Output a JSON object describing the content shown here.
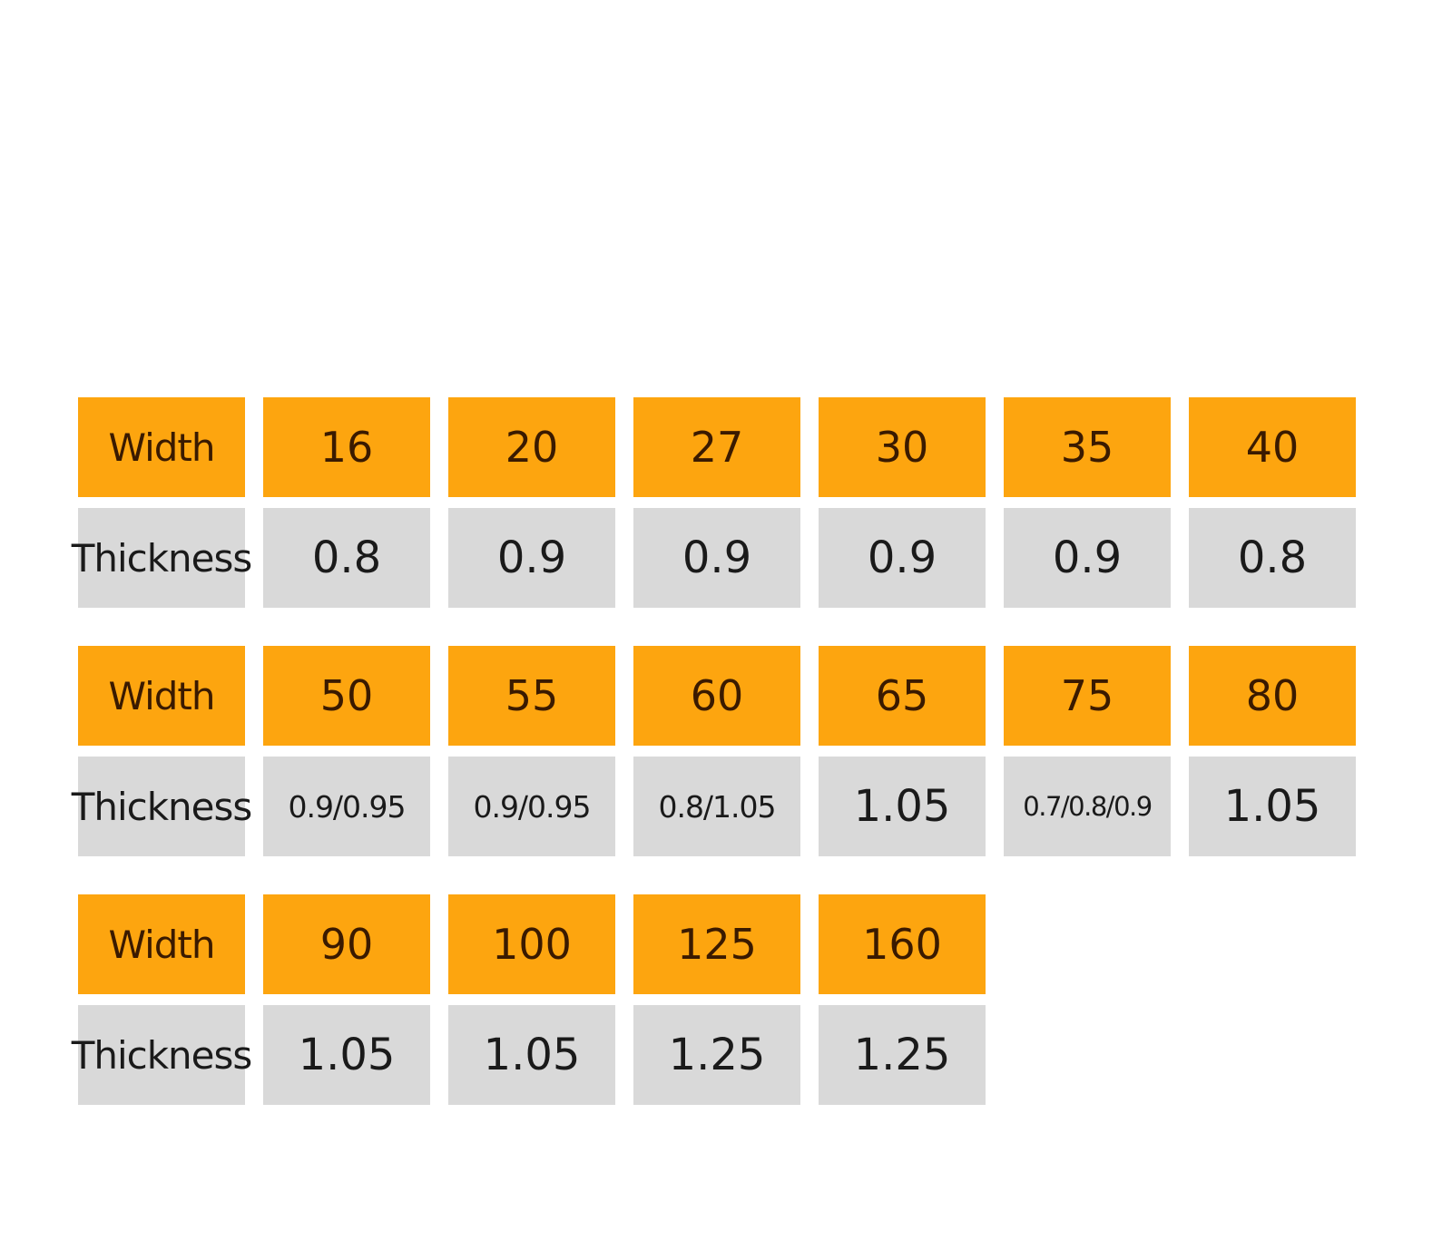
{
  "blocks": [
    {
      "width_label": "Width",
      "widths": [
        "16",
        "20",
        "27",
        "30",
        "35",
        "40"
      ],
      "thickness_label": "Thickness",
      "thicknesses": [
        "0.8",
        "0.9",
        "0.9",
        "0.9",
        "0.9",
        "0.8"
      ]
    },
    {
      "width_label": "Width",
      "widths": [
        "50",
        "55",
        "60",
        "65",
        "75",
        "80"
      ],
      "thickness_label": "Thickness",
      "thicknesses": [
        "0.9/0.95",
        "0.9/0.95",
        "0.8/1.05",
        "1.05",
        "0.7/0.8/0.9",
        "1.05"
      ]
    },
    {
      "width_label": "Width",
      "widths": [
        "90",
        "100",
        "125",
        "160"
      ],
      "thickness_label": "Thickness",
      "thicknesses": [
        "1.05",
        "1.05",
        "1.25",
        "1.25"
      ]
    }
  ]
}
